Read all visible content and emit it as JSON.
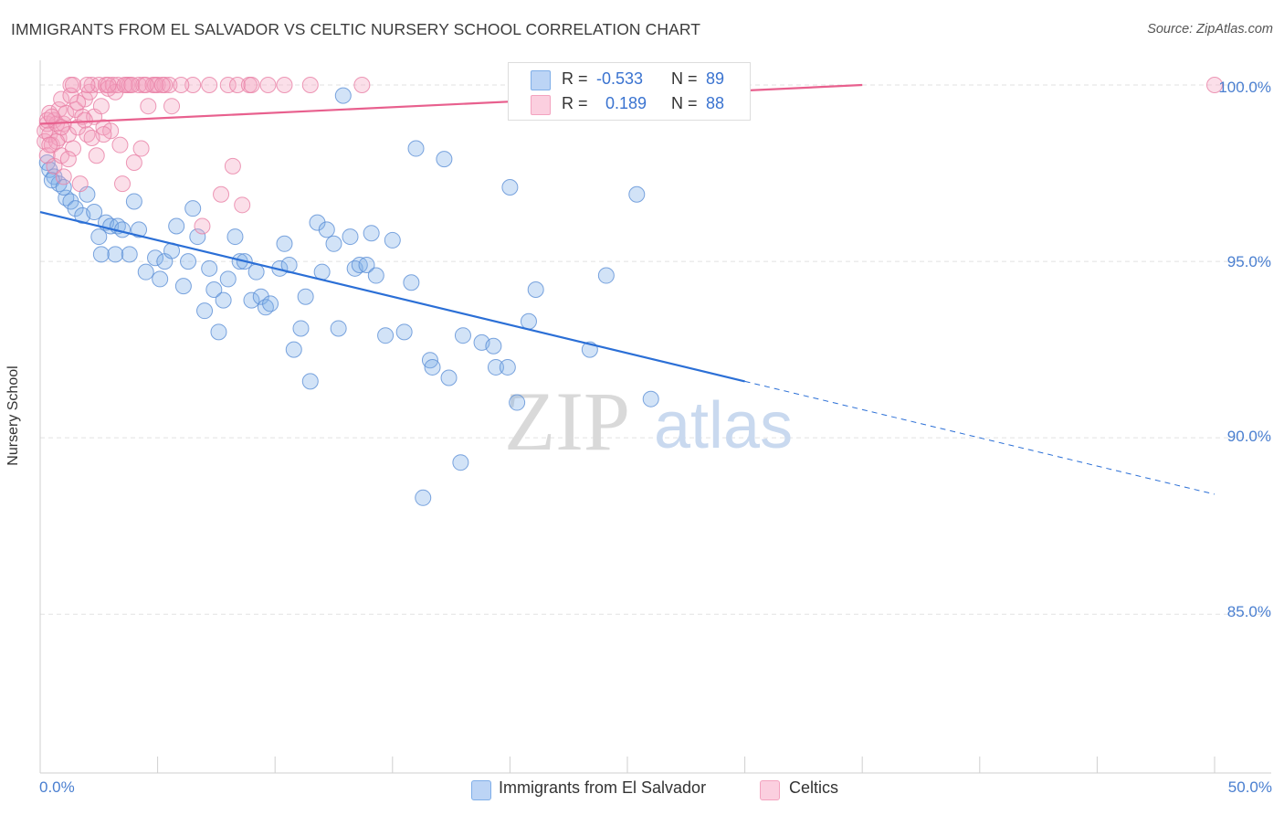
{
  "chart_data": {
    "type": "scatter",
    "title": "IMMIGRANTS FROM EL SALVADOR VS CELTIC NURSERY SCHOOL CORRELATION CHART",
    "source": "Source: ZipAtlas.com",
    "xlabel": "",
    "ylabel": "Nursery School",
    "xlim": [
      0,
      50
    ],
    "ylim": [
      80.5,
      100.7
    ],
    "x_tick_labels": [
      "0.0%",
      "50.0%"
    ],
    "y_ticks": [
      100,
      95,
      90,
      85
    ],
    "y_tick_labels": [
      "100.0%",
      "95.0%",
      "90.0%",
      "85.0%"
    ],
    "grid": true,
    "watermark": "ZIPatlas",
    "legend": {
      "rows": [
        {
          "r_label": "R =",
          "r_value": "-0.533",
          "n_label": "N =",
          "n_value": "89",
          "color": "#7faee8"
        },
        {
          "r_label": "R =",
          "r_value": "0.189",
          "n_label": "N =",
          "n_value": "88",
          "color": "#f3a3bf"
        }
      ]
    },
    "series": [
      {
        "name": "Immigrants from El Salvador",
        "color": "#7faee8",
        "stroke": "#5b8fd6",
        "trend": {
          "x0": 0,
          "y0": 96.4,
          "x1": 30,
          "y1": 91.6,
          "dash_to_x": 50,
          "dash_to_y": 88.4,
          "color": "#2b6fd6"
        },
        "points": [
          [
            0.3,
            97.8
          ],
          [
            0.4,
            97.6
          ],
          [
            0.6,
            97.4
          ],
          [
            0.8,
            97.2
          ],
          [
            1.1,
            96.8
          ],
          [
            1.3,
            96.7
          ],
          [
            1.5,
            96.5
          ],
          [
            1.8,
            96.3
          ],
          [
            2.0,
            96.9
          ],
          [
            2.3,
            96.4
          ],
          [
            2.5,
            95.7
          ],
          [
            2.8,
            96.1
          ],
          [
            3.0,
            96.0
          ],
          [
            3.3,
            96.0
          ],
          [
            3.5,
            95.9
          ],
          [
            3.2,
            95.2
          ],
          [
            4.0,
            96.7
          ],
          [
            4.2,
            95.9
          ],
          [
            3.8,
            95.2
          ],
          [
            4.5,
            94.7
          ],
          [
            4.9,
            95.1
          ],
          [
            5.1,
            94.5
          ],
          [
            5.3,
            95.0
          ],
          [
            5.6,
            95.3
          ],
          [
            5.8,
            96.0
          ],
          [
            6.1,
            94.3
          ],
          [
            6.3,
            95.0
          ],
          [
            6.5,
            96.5
          ],
          [
            6.7,
            95.7
          ],
          [
            7.0,
            93.6
          ],
          [
            7.2,
            94.8
          ],
          [
            7.4,
            94.2
          ],
          [
            7.6,
            93.0
          ],
          [
            7.8,
            93.9
          ],
          [
            8.0,
            94.5
          ],
          [
            8.3,
            95.7
          ],
          [
            8.5,
            95.0
          ],
          [
            8.7,
            95.0
          ],
          [
            9.0,
            93.9
          ],
          [
            9.2,
            94.7
          ],
          [
            9.4,
            94.0
          ],
          [
            9.6,
            93.7
          ],
          [
            9.8,
            93.8
          ],
          [
            10.2,
            94.8
          ],
          [
            10.4,
            95.5
          ],
          [
            10.6,
            94.9
          ],
          [
            10.8,
            92.5
          ],
          [
            11.1,
            93.1
          ],
          [
            11.3,
            94.0
          ],
          [
            11.5,
            91.6
          ],
          [
            11.8,
            96.1
          ],
          [
            12.0,
            94.7
          ],
          [
            12.2,
            95.9
          ],
          [
            12.5,
            95.5
          ],
          [
            12.7,
            93.1
          ],
          [
            12.9,
            99.7
          ],
          [
            13.2,
            95.7
          ],
          [
            13.4,
            94.8
          ],
          [
            13.6,
            94.9
          ],
          [
            13.9,
            94.9
          ],
          [
            14.1,
            95.8
          ],
          [
            14.3,
            94.6
          ],
          [
            14.7,
            92.9
          ],
          [
            15.0,
            95.6
          ],
          [
            15.5,
            93.0
          ],
          [
            15.8,
            94.4
          ],
          [
            16.0,
            98.2
          ],
          [
            16.3,
            88.3
          ],
          [
            16.6,
            92.2
          ],
          [
            16.7,
            92.0
          ],
          [
            17.2,
            97.9
          ],
          [
            17.4,
            91.7
          ],
          [
            17.9,
            89.3
          ],
          [
            18.0,
            92.9
          ],
          [
            18.8,
            92.7
          ],
          [
            19.3,
            92.6
          ],
          [
            19.4,
            92.0
          ],
          [
            19.9,
            92.0
          ],
          [
            20.0,
            97.1
          ],
          [
            20.3,
            91.0
          ],
          [
            20.8,
            93.3
          ],
          [
            21.1,
            94.2
          ],
          [
            23.4,
            92.5
          ],
          [
            24.1,
            94.6
          ],
          [
            25.4,
            96.9
          ],
          [
            26.0,
            91.1
          ],
          [
            0.5,
            97.3
          ],
          [
            1.0,
            97.1
          ],
          [
            2.6,
            95.2
          ]
        ]
      },
      {
        "name": "Celtics",
        "color": "#f3a3bf",
        "stroke": "#e97fa5",
        "trend": {
          "x0": 0,
          "y0": 98.9,
          "x1": 35,
          "y1": 100.0,
          "color": "#e8608e"
        },
        "points": [
          [
            0.2,
            98.7
          ],
          [
            0.2,
            98.4
          ],
          [
            0.3,
            98.9
          ],
          [
            0.3,
            98.0
          ],
          [
            0.4,
            99.2
          ],
          [
            0.4,
            98.6
          ],
          [
            0.5,
            98.3
          ],
          [
            0.6,
            99.0
          ],
          [
            0.6,
            97.7
          ],
          [
            0.7,
            98.9
          ],
          [
            0.8,
            99.3
          ],
          [
            0.8,
            98.5
          ],
          [
            0.9,
            99.6
          ],
          [
            0.9,
            98.0
          ],
          [
            1.0,
            98.9
          ],
          [
            1.0,
            97.4
          ],
          [
            1.1,
            99.2
          ],
          [
            1.2,
            98.6
          ],
          [
            1.3,
            100.0
          ],
          [
            1.3,
            99.7
          ],
          [
            1.4,
            98.2
          ],
          [
            1.5,
            99.3
          ],
          [
            1.6,
            98.8
          ],
          [
            1.7,
            97.2
          ],
          [
            1.8,
            99.1
          ],
          [
            1.9,
            99.6
          ],
          [
            2.0,
            98.6
          ],
          [
            2.1,
            99.8
          ],
          [
            2.2,
            100.0
          ],
          [
            2.3,
            99.1
          ],
          [
            2.4,
            98.0
          ],
          [
            2.5,
            100.0
          ],
          [
            2.6,
            99.4
          ],
          [
            2.7,
            98.8
          ],
          [
            2.8,
            100.0
          ],
          [
            2.9,
            99.9
          ],
          [
            3.0,
            98.7
          ],
          [
            3.1,
            100.0
          ],
          [
            3.2,
            99.8
          ],
          [
            3.3,
            100.0
          ],
          [
            3.4,
            98.3
          ],
          [
            3.5,
            97.2
          ],
          [
            3.7,
            100.0
          ],
          [
            3.8,
            100.0
          ],
          [
            4.0,
            97.8
          ],
          [
            4.2,
            100.0
          ],
          [
            4.3,
            98.2
          ],
          [
            4.4,
            100.0
          ],
          [
            4.6,
            99.4
          ],
          [
            4.8,
            100.0
          ],
          [
            5.0,
            100.0
          ],
          [
            5.3,
            100.0
          ],
          [
            5.5,
            100.0
          ],
          [
            5.6,
            99.4
          ],
          [
            6.5,
            100.0
          ],
          [
            6.9,
            96.0
          ],
          [
            7.7,
            96.9
          ],
          [
            8.0,
            100.0
          ],
          [
            8.2,
            97.7
          ],
          [
            8.4,
            100.0
          ],
          [
            8.6,
            96.6
          ],
          [
            8.9,
            100.0
          ],
          [
            9.7,
            100.0
          ],
          [
            10.4,
            100.0
          ],
          [
            11.5,
            100.0
          ],
          [
            13.7,
            100.0
          ],
          [
            0.3,
            99.0
          ],
          [
            0.5,
            99.1
          ],
          [
            0.7,
            98.4
          ],
          [
            1.2,
            97.9
          ],
          [
            1.6,
            99.5
          ],
          [
            2.0,
            100.0
          ],
          [
            2.7,
            98.6
          ],
          [
            3.6,
            100.0
          ],
          [
            4.9,
            100.0
          ],
          [
            5.2,
            100.0
          ],
          [
            0.4,
            98.3
          ],
          [
            0.9,
            98.8
          ],
          [
            1.4,
            100.0
          ],
          [
            1.9,
            99.0
          ],
          [
            2.2,
            98.5
          ],
          [
            2.9,
            100.0
          ],
          [
            3.9,
            100.0
          ],
          [
            4.5,
            100.0
          ],
          [
            6.0,
            100.0
          ],
          [
            7.2,
            100.0
          ],
          [
            9.0,
            100.0
          ],
          [
            50.0,
            100.0
          ]
        ]
      }
    ]
  }
}
